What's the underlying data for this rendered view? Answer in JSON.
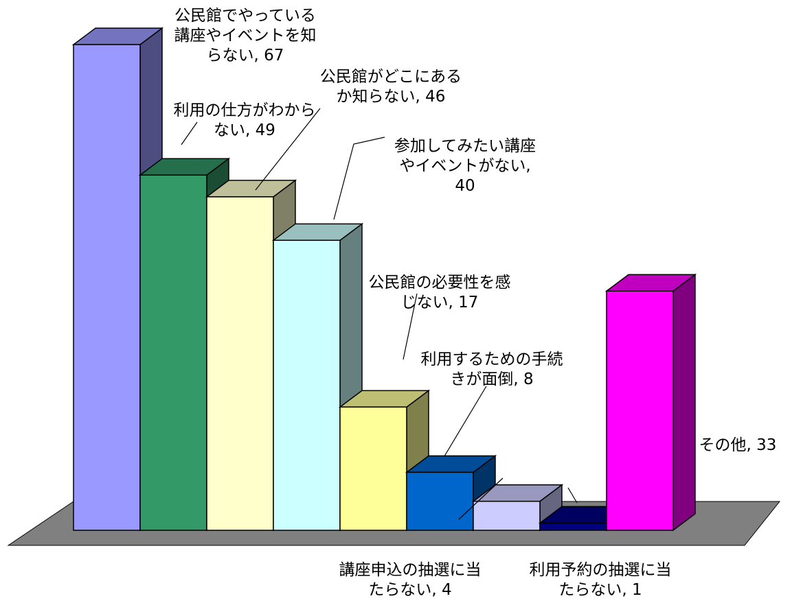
{
  "chart_data": {
    "type": "bar",
    "title": "",
    "xlabel": "",
    "ylabel": "",
    "ylim": [
      0,
      67
    ],
    "grid": false,
    "legend": "none",
    "categories": [
      "公民館でやっている講座やイベントを知らない",
      "利用の仕方がわからない",
      "公民館がどこにあるか知らない",
      "参加してみたい講座やイベントがない",
      "公民館の必要性を感じない",
      "利用するための手続きが面倒",
      "講座申込の抽選に当たらない",
      "利用予約の抽選に当たらない",
      "その他"
    ],
    "values": [
      67,
      49,
      46,
      40,
      17,
      8,
      4,
      1,
      33
    ],
    "data_labels": [
      [
        "公民館でやっている",
        "講座やイベントを知",
        "らない, 67"
      ],
      [
        "利用の仕方がわから",
        "ない, 49"
      ],
      [
        "公民館がどこにある",
        "か知らない, 46"
      ],
      [
        "参加してみたい講座",
        "やイベントがない,",
        "40"
      ],
      [
        "公民館の必要性を感",
        "じない, 17"
      ],
      [
        "利用するための手続",
        "きが面倒, 8"
      ],
      [
        "講座申込の抽選に当",
        "たらない, 4"
      ],
      [
        "利用予約の抽選に当",
        "たらない, 1"
      ],
      [
        "その他, 33"
      ]
    ],
    "colors": {
      "front": [
        "#9999ff",
        "#339966",
        "#ffffcc",
        "#ccffff",
        "#ffff99",
        "#0066cc",
        "#ccccff",
        "#000080",
        "#ff00ff"
      ],
      "top": [
        "#7373bf",
        "#266f4c",
        "#bfbf99",
        "#99bfbf",
        "#bfbf73",
        "#004c99",
        "#9999bf",
        "#000060",
        "#bf00bf"
      ],
      "side": [
        "#4d4d80",
        "#1a4d33",
        "#808066",
        "#668080",
        "#80804d",
        "#003366",
        "#666680",
        "#000040",
        "#800080"
      ],
      "floor": "#808080",
      "stroke": "#000000"
    }
  }
}
